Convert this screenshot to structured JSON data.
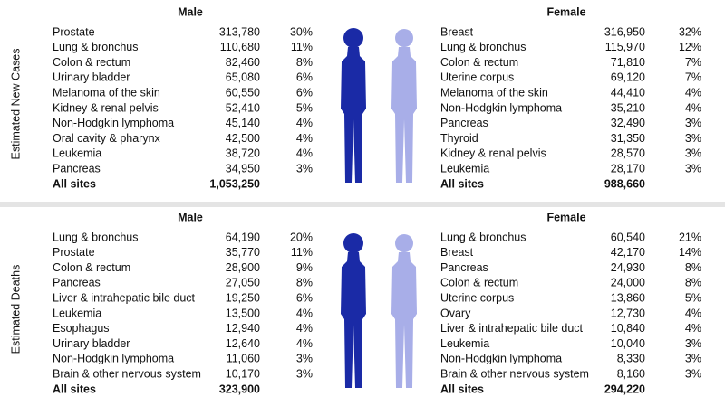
{
  "sections": [
    {
      "side_label": "Estimated New Cases",
      "male": {
        "title": "Male",
        "rows": [
          [
            "Prostate",
            "313,780",
            "30%"
          ],
          [
            "Lung & bronchus",
            "110,680",
            "11%"
          ],
          [
            "Colon & rectum",
            "82,460",
            "8%"
          ],
          [
            "Urinary bladder",
            "65,080",
            "6%"
          ],
          [
            "Melanoma of the skin",
            "60,550",
            "6%"
          ],
          [
            "Kidney & renal pelvis",
            "52,410",
            "5%"
          ],
          [
            "Non-Hodgkin lymphoma",
            "45,140",
            "4%"
          ],
          [
            "Oral cavity & pharynx",
            "42,500",
            "4%"
          ],
          [
            "Leukemia",
            "38,720",
            "4%"
          ],
          [
            "Pancreas",
            "34,950",
            "3%"
          ]
        ],
        "total": [
          "All sites",
          "1,053,250"
        ]
      },
      "female": {
        "title": "Female",
        "rows": [
          [
            "Breast",
            "316,950",
            "32%"
          ],
          [
            "Lung & bronchus",
            "115,970",
            "12%"
          ],
          [
            "Colon & rectum",
            "71,810",
            "7%"
          ],
          [
            "Uterine corpus",
            "69,120",
            "7%"
          ],
          [
            "Melanoma of the skin",
            "44,410",
            "4%"
          ],
          [
            "Non-Hodgkin lymphoma",
            "35,210",
            "4%"
          ],
          [
            "Pancreas",
            "32,490",
            "3%"
          ],
          [
            "Thyroid",
            "31,350",
            "3%"
          ],
          [
            "Kidney & renal pelvis",
            "28,570",
            "3%"
          ],
          [
            "Leukemia",
            "28,170",
            "3%"
          ]
        ],
        "total": [
          "All sites",
          "988,660"
        ]
      }
    },
    {
      "side_label": "Estimated Deaths",
      "male": {
        "title": "Male",
        "rows": [
          [
            "Lung & bronchus",
            "64,190",
            "20%"
          ],
          [
            "Prostate",
            "35,770",
            "11%"
          ],
          [
            "Colon & rectum",
            "28,900",
            "9%"
          ],
          [
            "Pancreas",
            "27,050",
            "8%"
          ],
          [
            "Liver & intrahepatic bile duct",
            "19,250",
            "6%"
          ],
          [
            "Leukemia",
            "13,500",
            "4%"
          ],
          [
            "Esophagus",
            "12,940",
            "4%"
          ],
          [
            "Urinary bladder",
            "12,640",
            "4%"
          ],
          [
            "Non-Hodgkin lymphoma",
            "11,060",
            "3%"
          ],
          [
            "Brain & other nervous system",
            "10,170",
            "3%"
          ]
        ],
        "total": [
          "All sites",
          "323,900"
        ]
      },
      "female": {
        "title": "Female",
        "rows": [
          [
            "Lung & bronchus",
            "60,540",
            "21%"
          ],
          [
            "Breast",
            "42,170",
            "14%"
          ],
          [
            "Pancreas",
            "24,930",
            "8%"
          ],
          [
            "Colon & rectum",
            "24,000",
            "8%"
          ],
          [
            "Uterine corpus",
            "13,860",
            "5%"
          ],
          [
            "Ovary",
            "12,730",
            "4%"
          ],
          [
            "Liver & intrahepatic bile duct",
            "10,840",
            "4%"
          ],
          [
            "Leukemia",
            "10,040",
            "3%"
          ],
          [
            "Non-Hodgkin lymphoma",
            "8,330",
            "3%"
          ],
          [
            "Brain & other nervous system",
            "8,160",
            "3%"
          ]
        ],
        "total": [
          "All sites",
          "294,220"
        ]
      }
    }
  ]
}
